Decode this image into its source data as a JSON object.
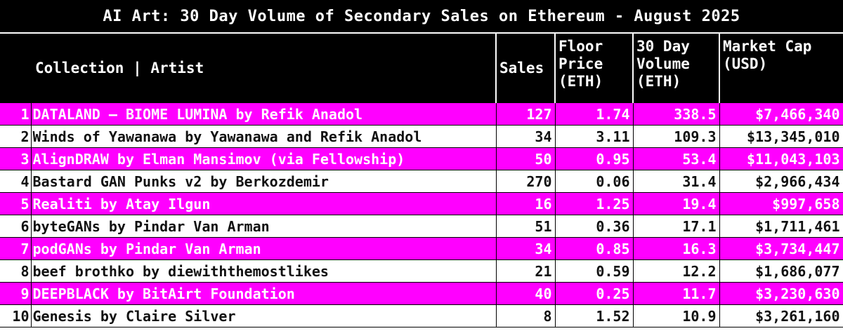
{
  "title": "AI Art: 30 Day Volume of Secondary Sales on Ethereum -  August 2025",
  "headers": {
    "collection": "Collection | Artist",
    "sales": "Sales",
    "floor": "Floor Price (ETH)",
    "volume": "30 Day Volume (ETH)",
    "market_cap": "Market Cap (USD)"
  },
  "colors": {
    "highlight": "#ff00ff",
    "header_bg": "#000000"
  },
  "rows": [
    {
      "rank": "1",
      "name": "DATALAND – BIOME LUMINA by Refik Anadol",
      "sales": "127",
      "floor": "1.74",
      "volume": "338.5",
      "cap": "$7,466,340"
    },
    {
      "rank": "2",
      "name": "Winds of Yawanawa by Yawanawa and Refik Anadol",
      "sales": "34",
      "floor": "3.11",
      "volume": "109.3",
      "cap": "$13,345,010"
    },
    {
      "rank": "3",
      "name": "AlignDRAW by Elman Mansimov (via Fellowship)",
      "sales": "50",
      "floor": "0.95",
      "volume": "53.4",
      "cap": "$11,043,103"
    },
    {
      "rank": "4",
      "name": "Bastard GAN Punks v2 by Berkozdemir",
      "sales": "270",
      "floor": "0.06",
      "volume": "31.4",
      "cap": "$2,966,434"
    },
    {
      "rank": "5",
      "name": "Realiti by Atay Ilgun",
      "sales": "16",
      "floor": "1.25",
      "volume": "19.4",
      "cap": "$997,658"
    },
    {
      "rank": "6",
      "name": "byteGANs by Pindar Van Arman",
      "sales": "51",
      "floor": "0.36",
      "volume": "17.1",
      "cap": "$1,711,461"
    },
    {
      "rank": "7",
      "name": "podGANs by Pindar Van Arman",
      "sales": "34",
      "floor": "0.85",
      "volume": "16.3",
      "cap": "$3,734,447"
    },
    {
      "rank": "8",
      "name": "beef brothko by diewiththemostlikes",
      "sales": "21",
      "floor": "0.59",
      "volume": "12.2",
      "cap": "$1,686,077"
    },
    {
      "rank": "9",
      "name": "DEEPBLACK by BitAirt Foundation",
      "sales": "40",
      "floor": "0.25",
      "volume": "11.7",
      "cap": "$3,230,630"
    },
    {
      "rank": "10",
      "name": "Genesis by Claire Silver",
      "sales": "8",
      "floor": "1.52",
      "volume": "10.9",
      "cap": "$3,261,160"
    }
  ]
}
